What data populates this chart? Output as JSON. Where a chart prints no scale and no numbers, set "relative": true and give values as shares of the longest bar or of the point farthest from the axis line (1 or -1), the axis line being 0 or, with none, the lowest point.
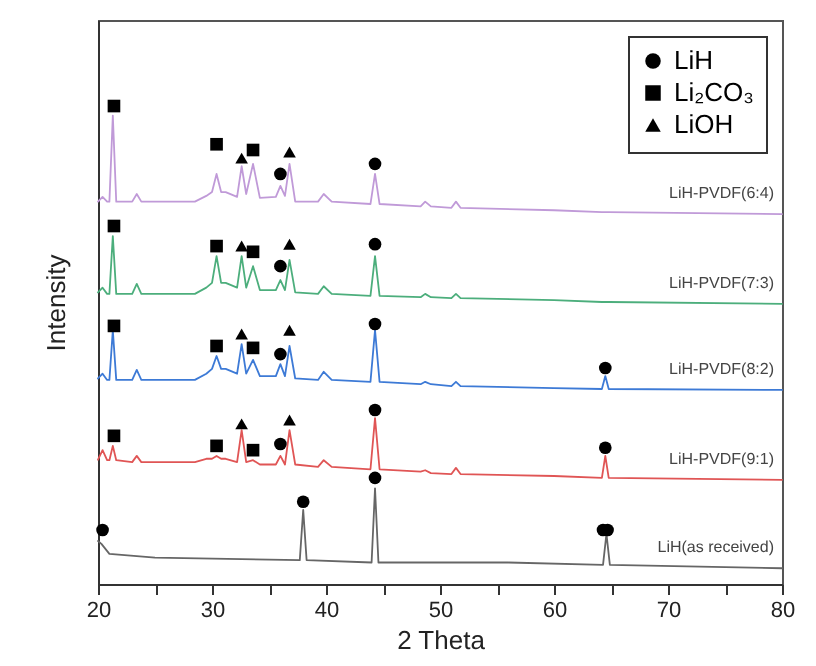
{
  "chart_data": {
    "type": "line",
    "xlabel": "2 Theta",
    "ylabel": "Intensity",
    "relative": true,
    "tick_labels": "x",
    "grid": false,
    "legend": "top right",
    "marker": "none",
    "line_style": "solid",
    "xlim": [
      20,
      80
    ],
    "xticks": [
      20,
      {
        "value": 25,
        "label": null
      },
      30,
      {
        "value": 35,
        "label": null
      },
      40,
      {
        "value": 45,
        "label": null
      },
      50,
      {
        "value": 55,
        "label": null
      },
      60,
      {
        "value": 65,
        "label": null
      },
      70,
      {
        "value": 75,
        "label": null
      },
      80
    ],
    "x": [
      20,
      20.4,
      20.8,
      21.0,
      21.3,
      21.6,
      23.0,
      23.4,
      23.8,
      28.5,
      29.5,
      30.0,
      30.4,
      30.8,
      31.2,
      32.2,
      32.6,
      33.0,
      33.6,
      34.2,
      35.6,
      36.0,
      36.4,
      36.8,
      37.3,
      39.3,
      39.8,
      40.5,
      43.9,
      44.3,
      44.7,
      48.3,
      48.7,
      49.2,
      51.0,
      51.4,
      51.8,
      60,
      64.2,
      64.5,
      64.8,
      80
    ],
    "series": [
      {
        "color": "#c09ad8",
        "values": [
          0.8,
          0.81,
          0.8,
          0.8,
          0.98,
          0.8,
          0.8,
          0.816,
          0.8,
          0.8,
          0.812,
          0.82,
          0.858,
          0.82,
          0.82,
          0.81,
          0.874,
          0.816,
          0.879,
          0.808,
          0.81,
          0.833,
          0.812,
          0.879,
          0.8,
          0.8,
          0.816,
          0.8,
          0.795,
          0.858,
          0.795,
          0.79,
          0.8,
          0.79,
          0.787,
          0.8,
          0.787,
          0.782,
          0.778,
          0.778,
          0.778,
          0.774
        ]
      },
      {
        "color": "#4cae7c",
        "values": [
          0.61,
          0.62,
          0.607,
          0.607,
          0.728,
          0.607,
          0.607,
          0.628,
          0.607,
          0.607,
          0.62,
          0.63,
          0.686,
          0.63,
          0.63,
          0.62,
          0.686,
          0.62,
          0.665,
          0.615,
          0.615,
          0.636,
          0.615,
          0.678,
          0.61,
          0.607,
          0.623,
          0.607,
          0.603,
          0.686,
          0.603,
          0.6,
          0.607,
          0.6,
          0.598,
          0.607,
          0.598,
          0.594,
          0.59,
          0.59,
          0.59,
          0.586
        ]
      },
      {
        "color": "#3d7ad6",
        "values": [
          0.43,
          0.44,
          0.427,
          0.427,
          0.531,
          0.427,
          0.427,
          0.448,
          0.427,
          0.427,
          0.44,
          0.45,
          0.477,
          0.45,
          0.45,
          0.44,
          0.502,
          0.44,
          0.469,
          0.435,
          0.435,
          0.46,
          0.435,
          0.498,
          0.43,
          0.427,
          0.444,
          0.427,
          0.423,
          0.531,
          0.423,
          0.418,
          0.423,
          0.418,
          0.414,
          0.423,
          0.414,
          0.41,
          0.408,
          0.435,
          0.408,
          0.406
        ]
      },
      {
        "color": "#e05555",
        "values": [
          0.26,
          0.28,
          0.259,
          0.259,
          0.289,
          0.259,
          0.255,
          0.268,
          0.255,
          0.255,
          0.262,
          0.262,
          0.268,
          0.262,
          0.262,
          0.255,
          0.322,
          0.255,
          0.259,
          0.25,
          0.25,
          0.268,
          0.25,
          0.322,
          0.25,
          0.245,
          0.259,
          0.245,
          0.24,
          0.347,
          0.24,
          0.235,
          0.238,
          0.232,
          0.23,
          0.243,
          0.23,
          0.226,
          0.222,
          0.268,
          0.222,
          0.218
        ]
      },
      {
        "color": "#666666",
        "x": [
          20,
          20.3,
          21,
          25,
          37.7,
          38.0,
          38.3,
          44.0,
          44.3,
          44.6,
          56,
          64.3,
          64.6,
          64.9,
          80
        ],
        "values": [
          0.09,
          0.084,
          0.063,
          0.055,
          0.05,
          0.155,
          0.05,
          0.045,
          0.2,
          0.045,
          0.045,
          0.04,
          0.105,
          0.04,
          0.033
        ]
      },
      {
        "type": "scatter",
        "name": "LiH",
        "color": "#000000",
        "marker": "circle",
        "x": [
          36.0,
          44.3,
          36.0,
          44.3,
          36.0,
          44.3,
          64.5,
          36.0,
          44.3,
          64.5,
          20.4,
          38.0,
          44.3,
          64.3,
          64.7
        ],
        "values": [
          0.858,
          0.879,
          0.665,
          0.711,
          0.481,
          0.544,
          0.452,
          0.293,
          0.364,
          0.285,
          0.113,
          0.172,
          0.222,
          0.113,
          0.113
        ]
      },
      {
        "type": "scatter",
        "name": "Li₂CO₃",
        "color": "#000000",
        "marker": "square",
        "x": [
          21.4,
          30.4,
          33.6,
          21.4,
          30.4,
          33.6,
          21.4,
          30.4,
          33.6,
          21.4,
          30.4,
          33.6
        ],
        "values": [
          1.0,
          0.92,
          0.908,
          0.749,
          0.707,
          0.695,
          0.54,
          0.498,
          0.494,
          0.31,
          0.289,
          0.28
        ]
      },
      {
        "type": "scatter",
        "name": "LiOH",
        "color": "#000000",
        "marker": "triangle",
        "x": [
          32.6,
          36.8,
          32.6,
          36.8,
          32.6,
          36.8,
          32.6,
          36.8
        ],
        "values": [
          0.891,
          0.904,
          0.707,
          0.711,
          0.523,
          0.531,
          0.335,
          0.343
        ]
      }
    ],
    "annotations": [
      "LiH-PVDF(6:4)",
      "LiH-PVDF(7:3)",
      "LiH-PVDF(8:2)",
      "LiH-PVDF(9:1)",
      "LiH(as received)"
    ]
  }
}
